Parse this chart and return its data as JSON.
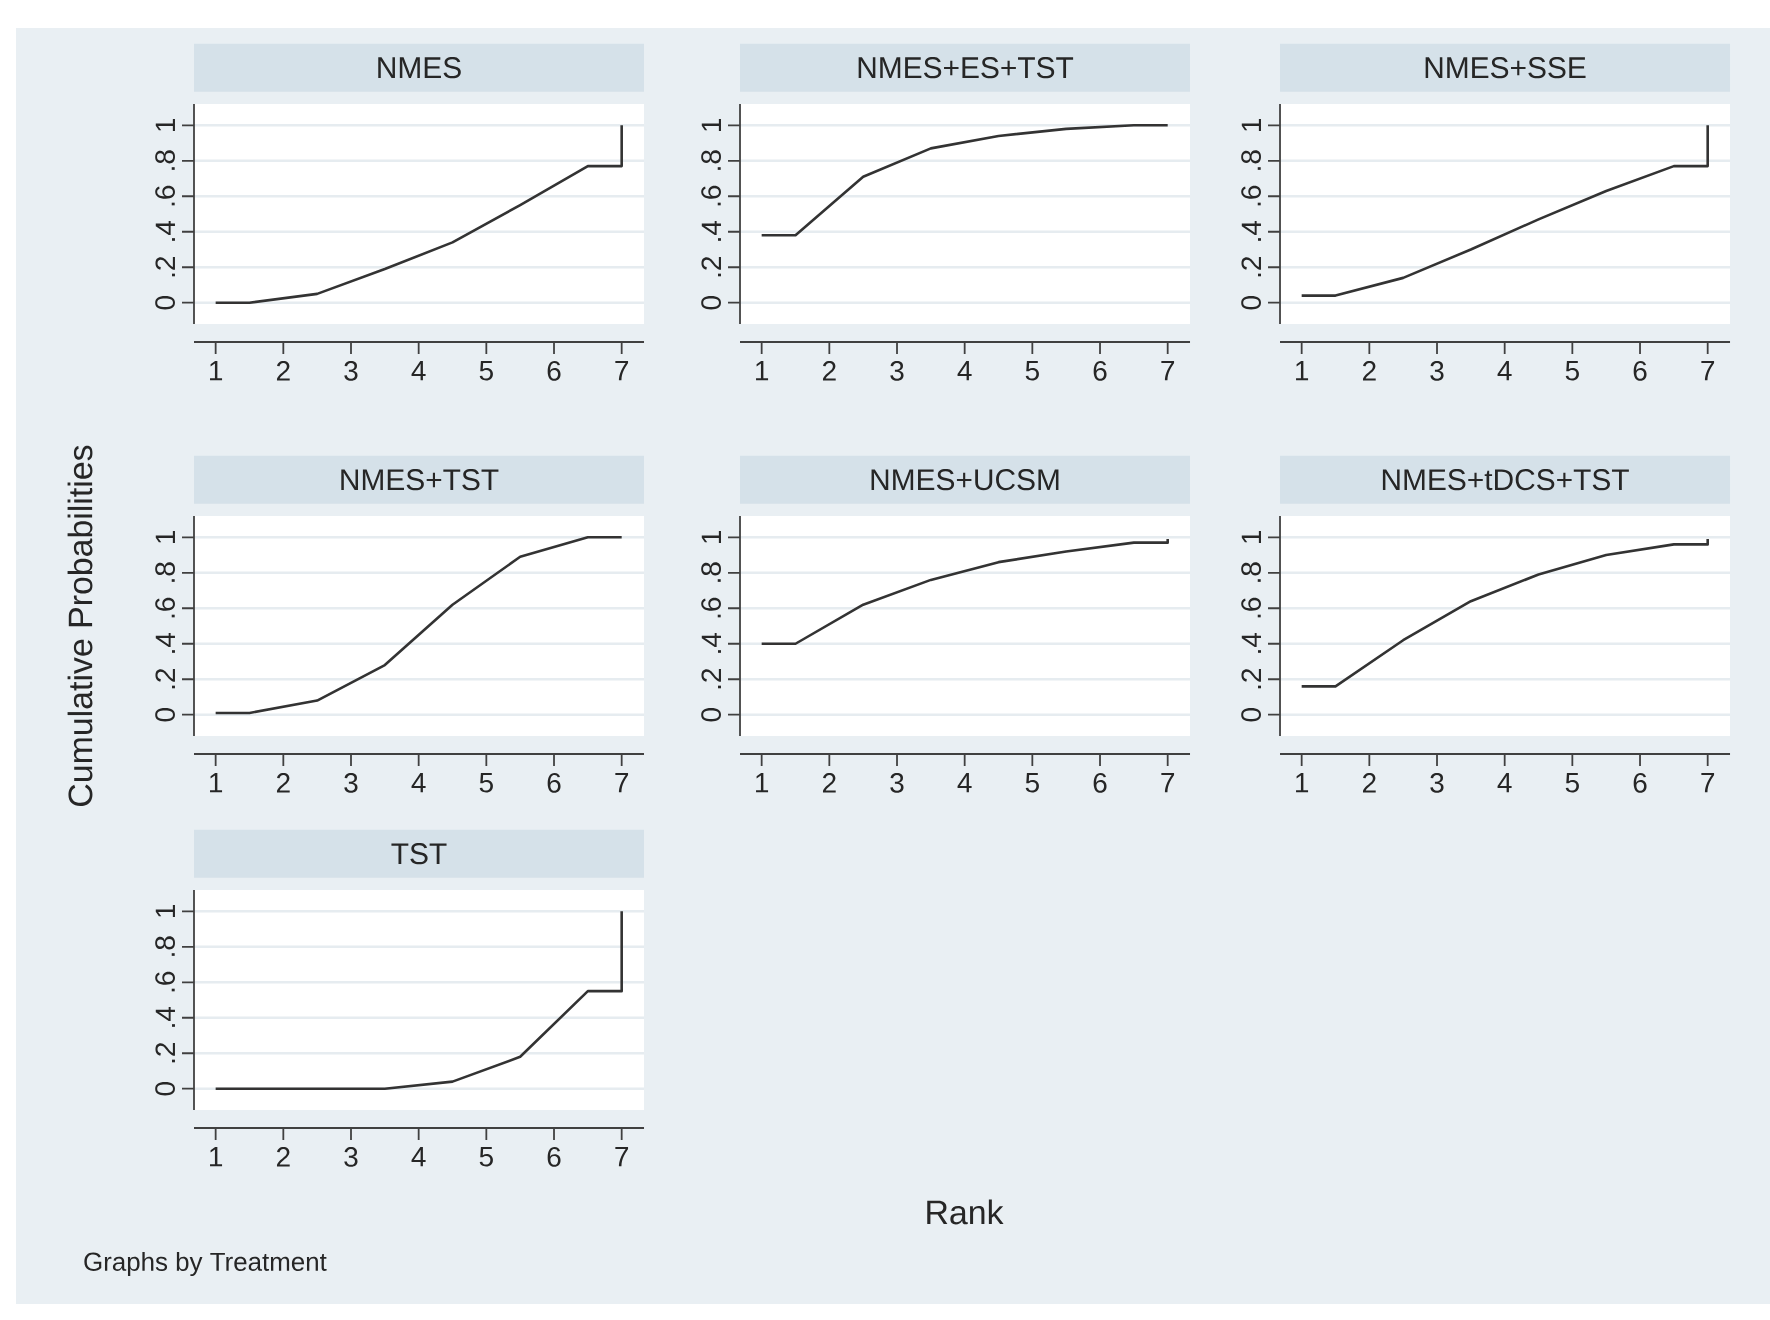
{
  "chart_data": [
    {
      "type": "line",
      "title": "NMES",
      "x": [
        1,
        1.5,
        2.5,
        3.5,
        4.5,
        5.5,
        6.5,
        7,
        7
      ],
      "values": [
        0,
        0,
        0.05,
        0.19,
        0.34,
        0.55,
        0.77,
        0.77,
        1
      ],
      "color": "#333333",
      "xlim": [
        0.68,
        7.33
      ],
      "ylim": [
        -0.12,
        1.12
      ],
      "xticks": [
        1,
        2,
        3,
        4,
        5,
        6,
        7
      ],
      "yticks": [
        0,
        {
          "value": 0.2,
          "label": ".2"
        },
        {
          "value": 0.4,
          "label": ".4"
        },
        {
          "value": 0.6,
          "label": ".6"
        },
        {
          "value": 0.8,
          "label": ".8"
        },
        1
      ],
      "grid": "y"
    },
    {
      "type": "line",
      "title": "NMES+ES+TST",
      "x": [
        1,
        1.5,
        2.5,
        3.5,
        4.5,
        5.5,
        6.5,
        7
      ],
      "values": [
        0.38,
        0.38,
        0.71,
        0.87,
        0.94,
        0.98,
        1,
        1
      ],
      "color": "#333333",
      "xlim": [
        0.68,
        7.33
      ],
      "ylim": [
        -0.12,
        1.12
      ],
      "xticks": [
        1,
        2,
        3,
        4,
        5,
        6,
        7
      ],
      "yticks": [
        0,
        {
          "value": 0.2,
          "label": ".2"
        },
        {
          "value": 0.4,
          "label": ".4"
        },
        {
          "value": 0.6,
          "label": ".6"
        },
        {
          "value": 0.8,
          "label": ".8"
        },
        1
      ],
      "grid": "y"
    },
    {
      "type": "line",
      "title": "NMES+SSE",
      "x": [
        1,
        1.5,
        2.5,
        3.5,
        4.5,
        5.5,
        6.5,
        7,
        7
      ],
      "values": [
        0.04,
        0.04,
        0.14,
        0.3,
        0.47,
        0.63,
        0.77,
        0.77,
        1
      ],
      "color": "#333333",
      "xlim": [
        0.68,
        7.33
      ],
      "ylim": [
        -0.12,
        1.12
      ],
      "xticks": [
        1,
        2,
        3,
        4,
        5,
        6,
        7
      ],
      "yticks": [
        0,
        {
          "value": 0.2,
          "label": ".2"
        },
        {
          "value": 0.4,
          "label": ".4"
        },
        {
          "value": 0.6,
          "label": ".6"
        },
        {
          "value": 0.8,
          "label": ".8"
        },
        1
      ],
      "grid": "y"
    },
    {
      "type": "line",
      "title": "NMES+TST",
      "ylabel": "Cumulative Probabilities",
      "x": [
        1,
        1.5,
        2.5,
        3.5,
        4.5,
        5.5,
        6.5,
        7
      ],
      "values": [
        0.01,
        0.01,
        0.08,
        0.28,
        0.62,
        0.89,
        1,
        1
      ],
      "color": "#333333",
      "xlim": [
        0.68,
        7.33
      ],
      "ylim": [
        -0.12,
        1.12
      ],
      "xticks": [
        1,
        2,
        3,
        4,
        5,
        6,
        7
      ],
      "yticks": [
        0,
        {
          "value": 0.2,
          "label": ".2"
        },
        {
          "value": 0.4,
          "label": ".4"
        },
        {
          "value": 0.6,
          "label": ".6"
        },
        {
          "value": 0.8,
          "label": ".8"
        },
        1
      ],
      "grid": "y"
    },
    {
      "type": "line",
      "title": "NMES+UCSM",
      "xlabel": "Rank",
      "x": [
        1,
        1.5,
        2.5,
        3.5,
        4.5,
        5.5,
        6.5,
        7,
        7
      ],
      "values": [
        0.4,
        0.4,
        0.62,
        0.76,
        0.86,
        0.92,
        0.97,
        0.97,
        0.99
      ],
      "color": "#333333",
      "xlim": [
        0.68,
        7.33
      ],
      "ylim": [
        -0.12,
        1.12
      ],
      "xticks": [
        1,
        2,
        3,
        4,
        5,
        6,
        7
      ],
      "yticks": [
        0,
        {
          "value": 0.2,
          "label": ".2"
        },
        {
          "value": 0.4,
          "label": ".4"
        },
        {
          "value": 0.6,
          "label": ".6"
        },
        {
          "value": 0.8,
          "label": ".8"
        },
        1
      ],
      "grid": "y"
    },
    {
      "type": "line",
      "title": "NMES+tDCS+TST",
      "x": [
        1,
        1.5,
        2.5,
        3.5,
        4.5,
        5.5,
        6.5,
        7,
        7
      ],
      "values": [
        0.16,
        0.16,
        0.42,
        0.64,
        0.79,
        0.9,
        0.96,
        0.96,
        0.99
      ],
      "color": "#333333",
      "xlim": [
        0.68,
        7.33
      ],
      "ylim": [
        -0.12,
        1.12
      ],
      "xticks": [
        1,
        2,
        3,
        4,
        5,
        6,
        7
      ],
      "yticks": [
        0,
        {
          "value": 0.2,
          "label": ".2"
        },
        {
          "value": 0.4,
          "label": ".4"
        },
        {
          "value": 0.6,
          "label": ".6"
        },
        {
          "value": 0.8,
          "label": ".8"
        },
        1
      ],
      "grid": "y"
    },
    {
      "type": "line",
      "title": "TST",
      "annotations": [
        "Graphs by Treatment"
      ],
      "x": [
        1,
        1.5,
        2.5,
        3.5,
        4.5,
        5.5,
        6.5,
        7,
        7
      ],
      "values": [
        0,
        0,
        0,
        0,
        0.04,
        0.18,
        0.55,
        0.55,
        1
      ],
      "color": "#333333",
      "xlim": [
        0.68,
        7.33
      ],
      "ylim": [
        -0.12,
        1.12
      ],
      "xticks": [
        1,
        2,
        3,
        4,
        5,
        6,
        7
      ],
      "yticks": [
        0,
        {
          "value": 0.2,
          "label": ".2"
        },
        {
          "value": 0.4,
          "label": ".4"
        },
        {
          "value": 0.6,
          "label": ".6"
        },
        {
          "value": 0.8,
          "label": ".8"
        },
        1
      ],
      "grid": "y"
    }
  ]
}
